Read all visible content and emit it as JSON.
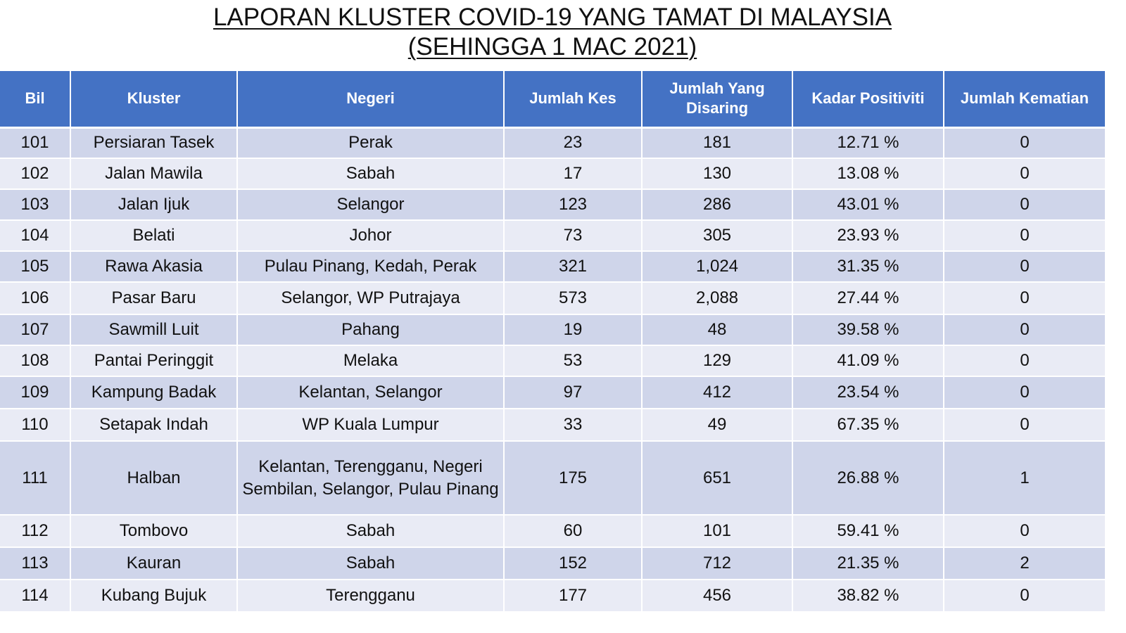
{
  "title": {
    "line1": "LAPORAN KLUSTER COVID-19 YANG TAMAT DI MALAYSIA",
    "line2": "(SEHINGGA  1 MAC 2021)"
  },
  "table": {
    "headers": [
      "Bil",
      "Kluster",
      "Negeri",
      "Jumlah Kes",
      "Jumlah Yang Disaring",
      "Kadar Positiviti",
      "Jumlah Kematian"
    ],
    "rows": [
      [
        "101",
        "Persiaran Tasek",
        "Perak",
        "23",
        "181",
        "12.71 %",
        "0"
      ],
      [
        "102",
        "Jalan Mawila",
        "Sabah",
        "17",
        "130",
        "13.08 %",
        "0"
      ],
      [
        "103",
        "Jalan Ijuk",
        "Selangor",
        "123",
        "286",
        "43.01 %",
        "0"
      ],
      [
        "104",
        "Belati",
        "Johor",
        "73",
        "305",
        "23.93 %",
        "0"
      ],
      [
        "105",
        "Rawa Akasia",
        "Pulau Pinang, Kedah, Perak",
        "321",
        "1,024",
        "31.35 %",
        "0"
      ],
      [
        "106",
        "Pasar Baru",
        "Selangor, WP Putrajaya",
        "573",
        "2,088",
        "27.44 %",
        "0"
      ],
      [
        "107",
        "Sawmill Luit",
        "Pahang",
        "19",
        "48",
        "39.58 %",
        "0"
      ],
      [
        "108",
        "Pantai Peringgit",
        "Melaka",
        "53",
        "129",
        "41.09 %",
        "0"
      ],
      [
        "109",
        "Kampung Badak",
        "Kelantan, Selangor",
        "97",
        "412",
        "23.54 %",
        "0"
      ],
      [
        "110",
        "Setapak Indah",
        "WP Kuala Lumpur",
        "33",
        "49",
        "67.35 %",
        "0"
      ],
      [
        "111",
        "Halban",
        "Kelantan, Terengganu, Negeri Sembilan, Selangor, Pulau Pinang",
        "175",
        "651",
        "26.88 %",
        "1"
      ],
      [
        "112",
        "Tombovo",
        "Sabah",
        "60",
        "101",
        "59.41 %",
        "0"
      ],
      [
        "113",
        "Kauran",
        "Sabah",
        "152",
        "712",
        "21.35 %",
        "2"
      ],
      [
        "114",
        "Kubang Bujuk",
        "Terengganu",
        "177",
        "456",
        "38.82 %",
        "0"
      ]
    ]
  },
  "colors": {
    "header_bg": "#4472c4",
    "row_odd_bg": "#cfd5ea",
    "row_even_bg": "#e9ebf5"
  }
}
